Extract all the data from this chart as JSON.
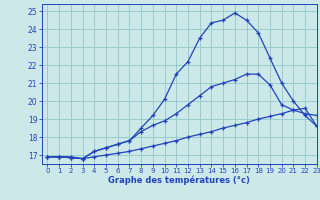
{
  "xlabel": "Graphe des températures (°c)",
  "xlim": [
    -0.5,
    23
  ],
  "ylim": [
    16.5,
    25.4
  ],
  "yticks": [
    17,
    18,
    19,
    20,
    21,
    22,
    23,
    24,
    25
  ],
  "xticks": [
    0,
    1,
    2,
    3,
    4,
    5,
    6,
    7,
    8,
    9,
    10,
    11,
    12,
    13,
    14,
    15,
    16,
    17,
    18,
    19,
    20,
    21,
    22,
    23
  ],
  "bg_color": "#cce8e8",
  "grid_color": "#99cccc",
  "line_color": "#2244bb",
  "series1_x": [
    0,
    1,
    2,
    3,
    4,
    5,
    6,
    7,
    8,
    9,
    10,
    11,
    12,
    13,
    14,
    15,
    16,
    17,
    18,
    19,
    20,
    21,
    22,
    23
  ],
  "series1_y": [
    16.9,
    16.9,
    16.85,
    16.8,
    16.9,
    17.0,
    17.1,
    17.2,
    17.35,
    17.5,
    17.65,
    17.8,
    18.0,
    18.15,
    18.3,
    18.5,
    18.65,
    18.8,
    19.0,
    19.15,
    19.3,
    19.5,
    19.6,
    18.6
  ],
  "series2_x": [
    0,
    1,
    2,
    3,
    4,
    5,
    6,
    7,
    8,
    9,
    10,
    11,
    12,
    13,
    14,
    15,
    16,
    17,
    18,
    19,
    20,
    21,
    22,
    23
  ],
  "series2_y": [
    16.9,
    16.9,
    16.9,
    16.8,
    17.2,
    17.4,
    17.6,
    17.8,
    18.3,
    18.65,
    18.9,
    19.3,
    19.8,
    20.3,
    20.8,
    21.0,
    21.2,
    21.5,
    21.5,
    20.9,
    19.8,
    19.5,
    19.3,
    19.2
  ],
  "series3_x": [
    0,
    1,
    2,
    3,
    4,
    5,
    6,
    7,
    8,
    9,
    10,
    11,
    12,
    13,
    14,
    15,
    16,
    17,
    18,
    19,
    20,
    21,
    22,
    23
  ],
  "series3_y": [
    16.9,
    16.9,
    16.85,
    16.8,
    17.2,
    17.4,
    17.6,
    17.8,
    18.5,
    19.2,
    20.1,
    21.5,
    22.2,
    23.5,
    24.35,
    24.5,
    24.9,
    24.5,
    23.8,
    22.4,
    21.0,
    20.0,
    19.2,
    18.6
  ]
}
